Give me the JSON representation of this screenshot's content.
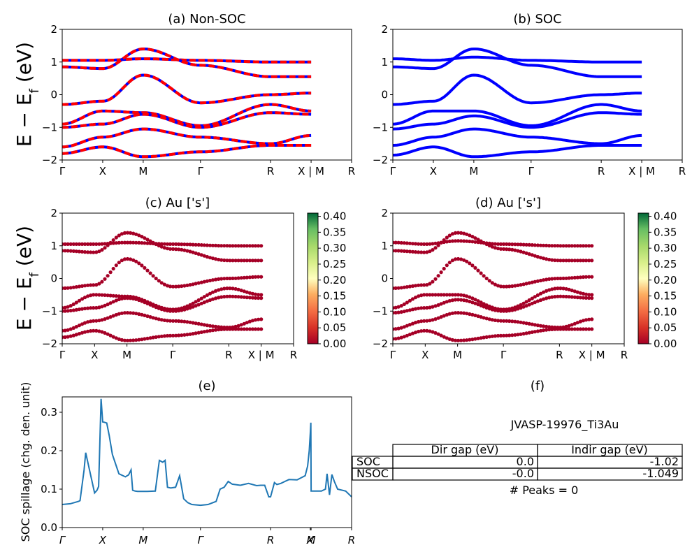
{
  "panels": {
    "a_title": "(a) Non-SOC",
    "b_title": "(b) SOC",
    "c_title": "(c)  Au ['s']",
    "d_title": "(d) Au ['s']",
    "e_title": "(e)",
    "f_title": "(f)"
  },
  "band_axes": {
    "ylabel": "E − E_f (eV)",
    "ylabel_main": "E − E",
    "ylabel_sub": "f",
    "ylabel_unit": " (eV)",
    "yticks": [
      "−2",
      "−1",
      "0",
      "1",
      "2"
    ],
    "ylim": [
      -2,
      2
    ],
    "kpath_labels": [
      "Γ",
      "X",
      "M",
      "Γ",
      "R",
      "X | M",
      "R"
    ],
    "kpath_positions": [
      0,
      0.5,
      1.0,
      1.707,
      2.573,
      3.073,
      3.573
    ],
    "kpath_total": 3.573
  },
  "colorbar": {
    "ticks": [
      "0.00",
      "0.05",
      "0.10",
      "0.15",
      "0.20",
      "0.25",
      "0.30",
      "0.35",
      "0.40"
    ],
    "range": [
      0,
      0.41
    ],
    "colors": [
      "#a50026",
      "#f46d43",
      "#fee08b",
      "#ffffbf",
      "#d9ef8b",
      "#66bd63",
      "#006837"
    ]
  },
  "colors": {
    "nonsoc_a": "#0000ff",
    "nonsoc_b": "#ff0000",
    "soc": "#0000ff",
    "proj_point": "#a50026",
    "spillage_line": "#1f77b4"
  },
  "spillage": {
    "ylabel": "SOC spillage (chg. den. unit)",
    "yticks": [
      "0.0",
      "0.1",
      "0.2",
      "0.3"
    ],
    "xtick_labels": [
      "Γ",
      "X",
      "M",
      "Γ",
      "R",
      "X",
      "M",
      "R"
    ],
    "xtick_positions": [
      0,
      0.5,
      1.0,
      1.707,
      2.573,
      3.063,
      3.073,
      3.573
    ],
    "xlim": [
      0,
      3.573
    ],
    "ylim": [
      0,
      0.34
    ]
  },
  "info_panel": {
    "name": "JVASP-19976_Ti3Au",
    "peaks": "# Peaks = 0",
    "headers": [
      "Dir gap (eV)",
      "Indir gap (eV)"
    ],
    "rows": [
      {
        "label": "SOC",
        "dir": "0.0",
        "indir": "-1.02"
      },
      {
        "label": "NSOC",
        "dir": "-0.0",
        "indir": "-1.049"
      }
    ]
  },
  "chart_data": [
    {
      "type": "line",
      "title": "(a) Non-SOC",
      "ylabel": "E − E_f (eV)",
      "ylim": [
        -2,
        2
      ],
      "xtick_labels": [
        "Γ",
        "X",
        "M",
        "Γ",
        "R",
        "X | M",
        "R"
      ],
      "series": [
        {
          "points": [
            [
              0,
              1.05
            ],
            [
              0.5,
              1.05
            ],
            [
              1.0,
              1.1
            ],
            [
              1.707,
              1.05
            ],
            [
              2.573,
              1.0
            ],
            [
              3.073,
              1.0
            ]
          ]
        },
        {
          "points": [
            [
              0,
              0.85
            ],
            [
              0.5,
              0.8
            ],
            [
              1.0,
              1.4
            ],
            [
              1.707,
              0.9
            ],
            [
              2.573,
              0.55
            ],
            [
              3.073,
              0.55
            ]
          ]
        },
        {
          "points": [
            [
              0,
              -0.3
            ],
            [
              0.5,
              -0.2
            ],
            [
              1.0,
              0.6
            ],
            [
              1.707,
              -0.25
            ],
            [
              2.573,
              0.0
            ],
            [
              3.073,
              0.05
            ]
          ]
        },
        {
          "points": [
            [
              0,
              -0.9
            ],
            [
              0.5,
              -0.5
            ],
            [
              1.0,
              -0.55
            ],
            [
              1.707,
              -0.95
            ],
            [
              2.573,
              -0.3
            ],
            [
              3.073,
              -0.5
            ]
          ]
        },
        {
          "points": [
            [
              0,
              -1.0
            ],
            [
              0.5,
              -0.9
            ],
            [
              1.0,
              -0.6
            ],
            [
              1.707,
              -1.0
            ],
            [
              2.573,
              -0.55
            ],
            [
              3.073,
              -0.6
            ]
          ]
        },
        {
          "points": [
            [
              0,
              -1.6
            ],
            [
              0.5,
              -1.3
            ],
            [
              1.0,
              -1.05
            ],
            [
              1.707,
              -1.3
            ],
            [
              2.573,
              -1.5
            ],
            [
              3.073,
              -1.25
            ]
          ]
        },
        {
          "points": [
            [
              0,
              -1.8
            ],
            [
              0.5,
              -1.6
            ],
            [
              1.0,
              -1.9
            ],
            [
              1.707,
              -1.75
            ],
            [
              2.573,
              -1.55
            ],
            [
              3.073,
              -1.55
            ]
          ]
        }
      ]
    },
    {
      "type": "line",
      "title": "(b) SOC",
      "ylim": [
        -2,
        2
      ],
      "xtick_labels": [
        "Γ",
        "X",
        "M",
        "Γ",
        "R",
        "X | M",
        "R"
      ],
      "series": [
        {
          "points": [
            [
              0,
              1.1
            ],
            [
              0.5,
              1.05
            ],
            [
              1.0,
              1.15
            ],
            [
              1.707,
              1.05
            ],
            [
              2.573,
              1.0
            ],
            [
              3.073,
              1.0
            ]
          ]
        },
        {
          "points": [
            [
              0,
              0.85
            ],
            [
              0.5,
              0.8
            ],
            [
              1.0,
              1.4
            ],
            [
              1.707,
              0.9
            ],
            [
              2.573,
              0.55
            ],
            [
              3.073,
              0.55
            ]
          ]
        },
        {
          "points": [
            [
              0,
              -0.3
            ],
            [
              0.5,
              -0.2
            ],
            [
              1.0,
              0.6
            ],
            [
              1.707,
              -0.25
            ],
            [
              2.573,
              0.0
            ],
            [
              3.073,
              0.05
            ]
          ]
        },
        {
          "points": [
            [
              0,
              -0.9
            ],
            [
              0.5,
              -0.5
            ],
            [
              1.0,
              -0.5
            ],
            [
              1.707,
              -0.95
            ],
            [
              2.573,
              -0.3
            ],
            [
              3.073,
              -0.5
            ]
          ]
        },
        {
          "points": [
            [
              0,
              -1.05
            ],
            [
              0.5,
              -0.9
            ],
            [
              1.0,
              -0.65
            ],
            [
              1.707,
              -1.0
            ],
            [
              2.573,
              -0.55
            ],
            [
              3.073,
              -0.6
            ]
          ]
        },
        {
          "points": [
            [
              0,
              -1.55
            ],
            [
              0.5,
              -1.3
            ],
            [
              1.0,
              -1.05
            ],
            [
              1.707,
              -1.3
            ],
            [
              2.573,
              -1.5
            ],
            [
              3.073,
              -1.25
            ]
          ]
        },
        {
          "points": [
            [
              0,
              -1.85
            ],
            [
              0.5,
              -1.6
            ],
            [
              1.0,
              -1.9
            ],
            [
              1.707,
              -1.75
            ],
            [
              2.573,
              -1.55
            ],
            [
              3.073,
              -1.55
            ]
          ]
        }
      ]
    },
    {
      "type": "line",
      "title": "(e)",
      "ylabel": "SOC spillage (chg. den. unit)",
      "xlim": [
        0,
        3.573
      ],
      "ylim": [
        0,
        0.34
      ],
      "series": [
        {
          "x": [
            0,
            0.1,
            0.2,
            0.22,
            0.27,
            0.29,
            0.4,
            0.43,
            0.45,
            0.48,
            0.5,
            0.52,
            0.55,
            0.58,
            0.62,
            0.7,
            0.78,
            0.82,
            0.85,
            0.87,
            0.9,
            0.93,
            1.05,
            1.15,
            1.2,
            1.24,
            1.27,
            1.3,
            1.34,
            1.4,
            1.45,
            1.5,
            1.55,
            1.6,
            1.707,
            1.8,
            1.9,
            1.95,
            2.0,
            2.05,
            2.1,
            2.2,
            2.3,
            2.4,
            2.45,
            2.5,
            2.55,
            2.573,
            2.62,
            2.65,
            2.7,
            2.75,
            2.8,
            2.9,
            3.0,
            3.03,
            3.05,
            3.063,
            3.07,
            3.073,
            3.2,
            3.25,
            3.27,
            3.3,
            3.33,
            3.36,
            3.4,
            3.5,
            3.573
          ],
          "y": [
            0.06,
            0.062,
            0.068,
            0.07,
            0.15,
            0.195,
            0.09,
            0.097,
            0.107,
            0.335,
            0.275,
            0.274,
            0.272,
            0.24,
            0.19,
            0.14,
            0.132,
            0.137,
            0.15,
            0.097,
            0.095,
            0.094,
            0.094,
            0.095,
            0.175,
            0.17,
            0.175,
            0.105,
            0.103,
            0.105,
            0.135,
            0.075,
            0.065,
            0.06,
            0.058,
            0.06,
            0.068,
            0.1,
            0.105,
            0.12,
            0.113,
            0.11,
            0.115,
            0.109,
            0.11,
            0.11,
            0.08,
            0.08,
            0.117,
            0.112,
            0.115,
            0.12,
            0.125,
            0.124,
            0.135,
            0.16,
            0.2,
            0.245,
            0.273,
            0.095,
            0.095,
            0.1,
            0.14,
            0.085,
            0.138,
            0.12,
            0.1,
            0.095,
            0.08
          ]
        }
      ]
    }
  ]
}
